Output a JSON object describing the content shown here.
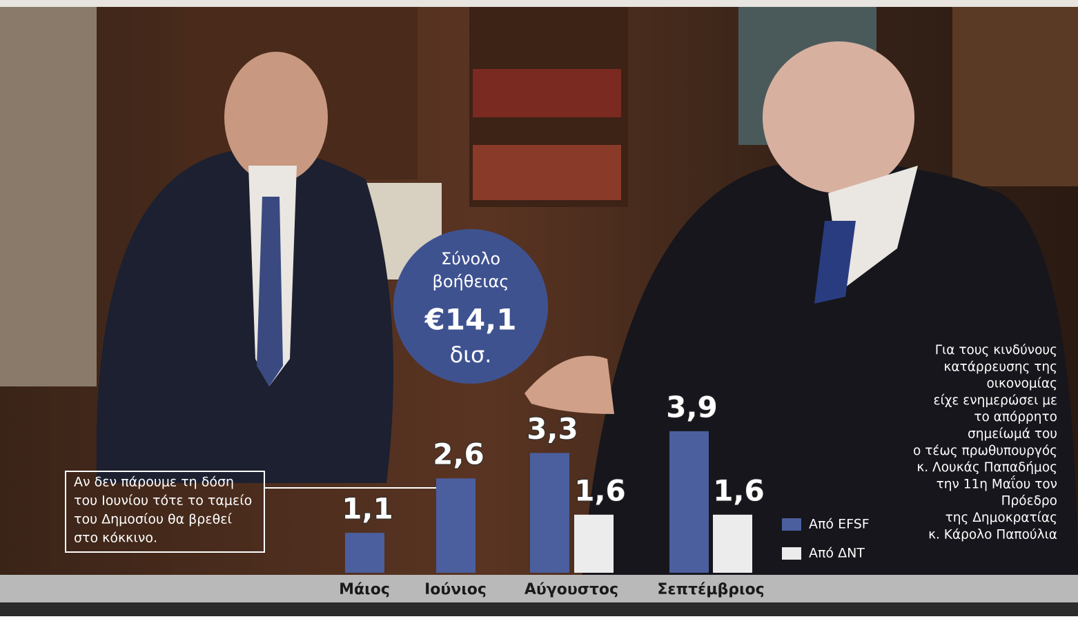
{
  "chart_data": {
    "type": "bar",
    "categories": [
      "Μάιος",
      "Ιούνιος",
      "Αύγουστος",
      "Σεπτέμβριος"
    ],
    "series": [
      {
        "name": "Από EFSF",
        "color": "#4b5f9f",
        "values": [
          1.1,
          2.6,
          3.3,
          3.9
        ],
        "value_labels": [
          "1,1",
          "2,6",
          "3,3",
          "3,9"
        ]
      },
      {
        "name": "Από ΔΝΤ",
        "color": "#ececec",
        "values": [
          null,
          null,
          1.6,
          1.6
        ],
        "value_labels": [
          null,
          null,
          "1,6",
          "1,6"
        ]
      }
    ],
    "total": 14.1,
    "total_title": [
      "Σύνολο",
      "βοήθειας"
    ],
    "total_label": "€14,1",
    "total_unit": "δισ.",
    "annotation": [
      "Αν δεν πάρουμε τη δόση",
      "του Ιουνίου τότε το ταμείο",
      "του Δημοσίου θα βρεθεί",
      "στο κόκκινο."
    ],
    "caption": [
      "Για τους κινδύνους",
      "κατάρρευσης της",
      "οικονομίας",
      "είχε ενημερώσει με",
      "το απόρρητο",
      "σημείωμά του",
      "ο τέως πρωθυπουργός",
      "κ. Λουκάς Παπαδήμος",
      "την 11η Μαΐου τον",
      "Πρόεδρο",
      "της Δημοκρατίας",
      "κ. Κάρολο Παπούλια"
    ]
  }
}
